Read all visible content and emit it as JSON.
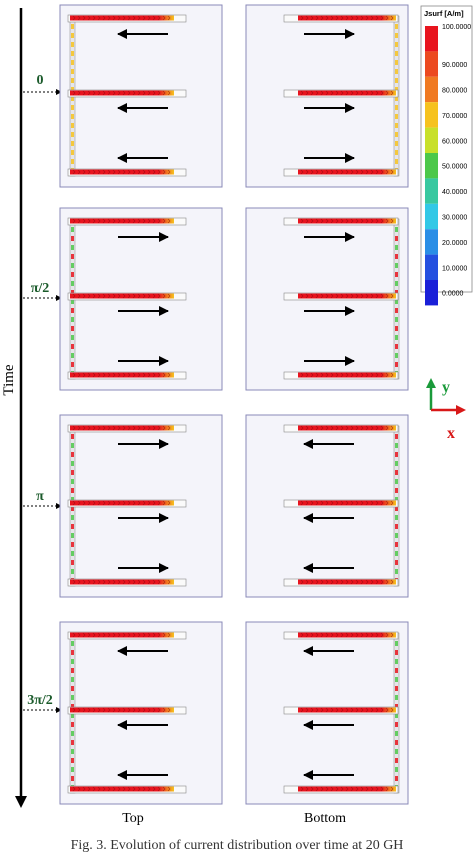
{
  "axis": {
    "time_label": "Time"
  },
  "phases": [
    {
      "label": "0",
      "top_arrows": [
        "left",
        "left",
        "left"
      ],
      "bottom_arrows": [
        "right",
        "right",
        "right"
      ]
    },
    {
      "label": "π/2",
      "top_arrows": [
        "right",
        "right",
        "right"
      ],
      "bottom_arrows": [
        "right",
        "right",
        "right"
      ]
    },
    {
      "label": "π",
      "top_arrows": [
        "right",
        "right",
        "right"
      ],
      "bottom_arrows": [
        "left",
        "left",
        "left"
      ]
    },
    {
      "label": "3π/2",
      "top_arrows": [
        "left",
        "left",
        "left"
      ],
      "bottom_arrows": [
        "left",
        "left",
        "left"
      ]
    }
  ],
  "columns": {
    "top": "Top",
    "bottom": "Bottom"
  },
  "legend": {
    "title": "Jsurf [A/m]",
    "ticks": [
      "100.0000",
      "90.0000",
      "80.0000",
      "70.0000",
      "60.0000",
      "50.0000",
      "40.0000",
      "30.0000",
      "20.0000",
      "10.0000",
      "0.0000"
    ],
    "colors": [
      "#e8141e",
      "#ec4a20",
      "#f07a22",
      "#f6c21e",
      "#c8e02a",
      "#4cc84a",
      "#38c8a0",
      "#32c8e6",
      "#2a8ee6",
      "#2450e0",
      "#1a20d8"
    ]
  },
  "axes_indicator": {
    "y": "y",
    "x": "x",
    "y_color": "#1a9a3a",
    "x_color": "#d81818"
  },
  "caption": "Fig. 3. Evolution of current distribution over time at 20 GH"
}
